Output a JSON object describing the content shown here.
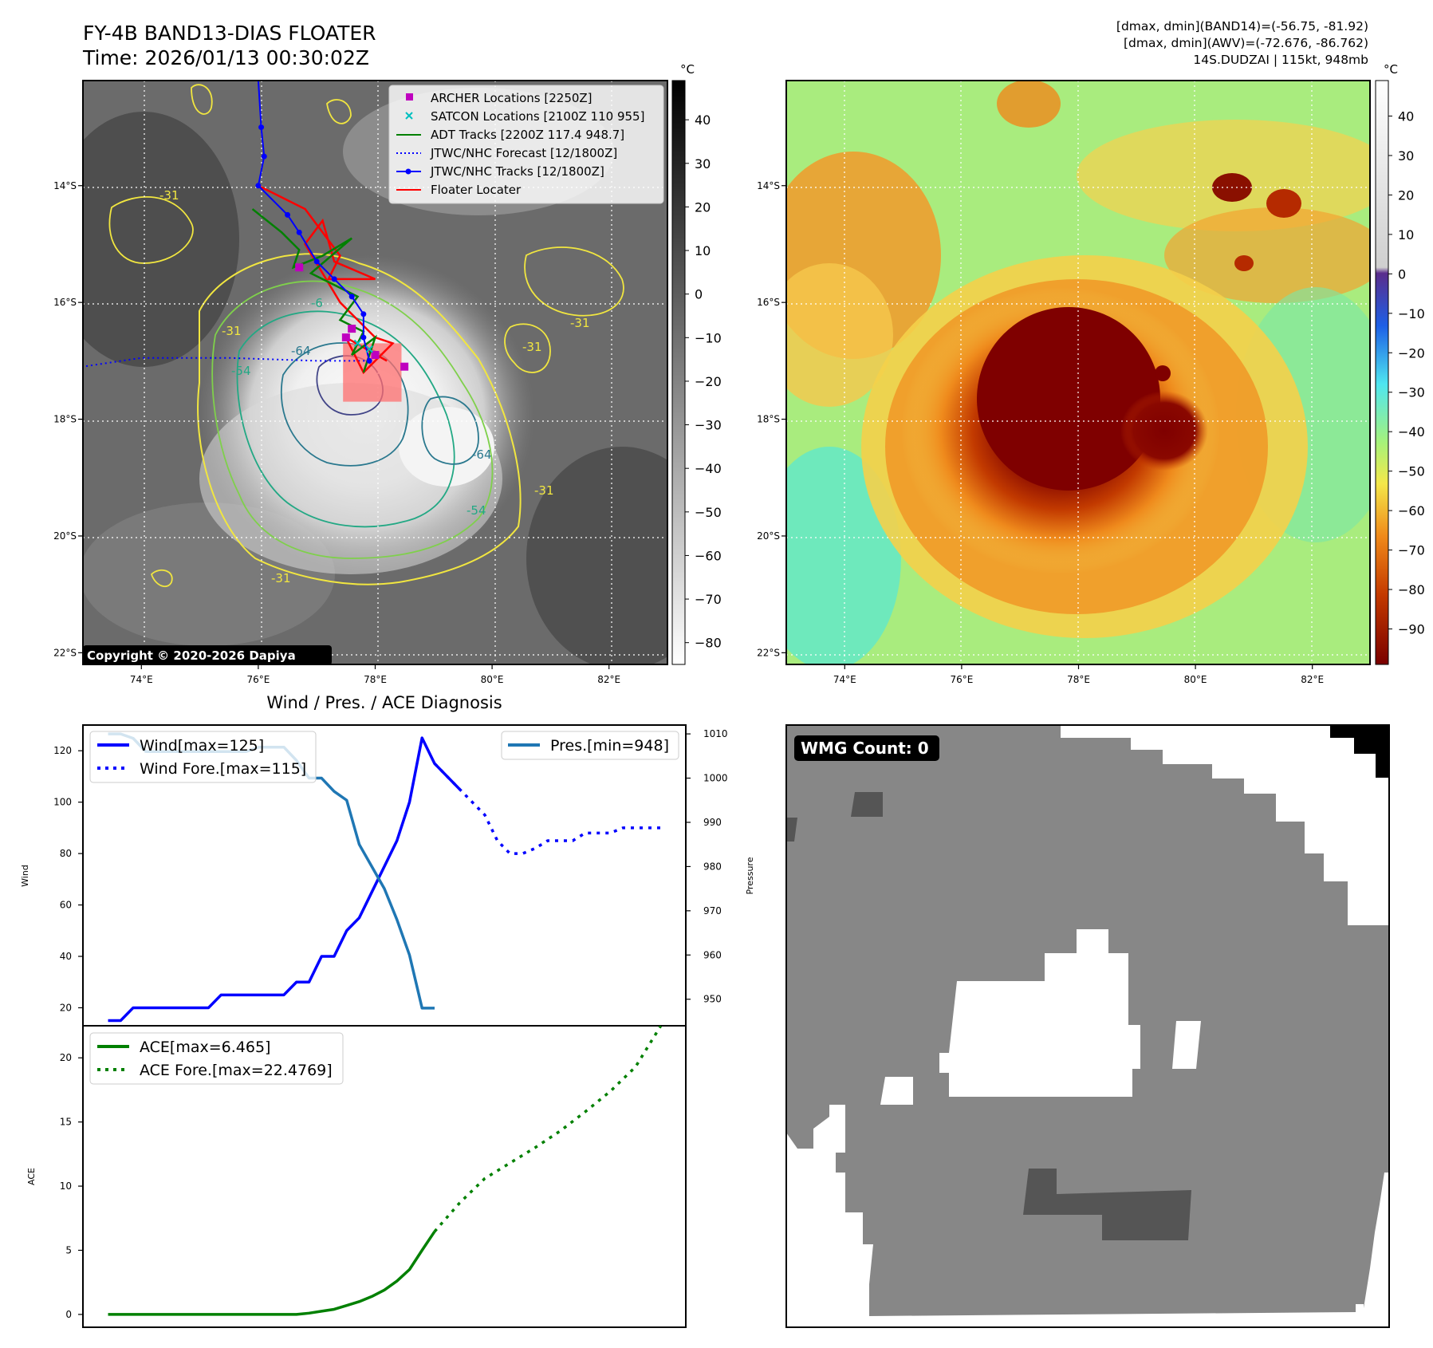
{
  "header": {
    "title_line1": "FY-4B BAND13-DIAS FLOATER",
    "title_line2": "Time: 2026/01/13 00:30:02Z",
    "info_line1": "[dmax, dmin](BAND14)=(-56.75, -81.92)",
    "info_line2": "[dmax, dmin](AWV)=(-72.676, -86.762)",
    "info_line3": "14S.DUDZAI | 115kt, 948mb"
  },
  "map_axes": {
    "lon_ticks": [
      "74°E",
      "76°E",
      "78°E",
      "80°E",
      "82°E"
    ],
    "lat_ticks": [
      "14°S",
      "16°S",
      "18°S",
      "20°S",
      "22°S"
    ],
    "lon_range": [
      73,
      83
    ],
    "lat_range": [
      -12.2,
      -22.2
    ]
  },
  "ir_panel": {
    "copyright": "Copyright © 2020-2026 Dapiya",
    "colorbar_unit": "°C",
    "colorbar_ticks": [
      "40",
      "30",
      "20",
      "10",
      "0",
      "−10",
      "−20",
      "−30",
      "−40",
      "−50",
      "−60",
      "−70",
      "−80"
    ],
    "colorbar_range": [
      49,
      -85
    ],
    "legend": [
      {
        "label": "ARCHER Locations [2250Z]",
        "color": "#bf00bf",
        "marker": "square"
      },
      {
        "label": "SATCON Locations [2100Z 110 955]",
        "color": "#00bfbf",
        "marker": "x"
      },
      {
        "label": "ADT Tracks [2200Z 117.4 948.7]",
        "color": "#008000",
        "marker": "line"
      },
      {
        "label": "JTWC/NHC Forecast [12/1800Z]",
        "color": "#0000ff",
        "marker": "dotted"
      },
      {
        "label": "JTWC/NHC Tracks [12/1800Z]",
        "color": "#0000ff",
        "marker": "line-dot"
      },
      {
        "label": "Floater Locater",
        "color": "#ff0000",
        "marker": "line"
      }
    ],
    "contour_labels": [
      "-31",
      "-31",
      "-31",
      "-31",
      "-31",
      "-54",
      "-54",
      "-64",
      "-64",
      "-6",
      "-31"
    ],
    "jtwc_track": [
      [
        76.0,
        -12.2
      ],
      [
        76.05,
        -13.0
      ],
      [
        76.1,
        -13.5
      ],
      [
        76.0,
        -14.0
      ],
      [
        76.5,
        -14.5
      ],
      [
        76.7,
        -14.8
      ],
      [
        77.0,
        -15.3
      ],
      [
        77.3,
        -15.6
      ],
      [
        77.6,
        -15.9
      ],
      [
        77.8,
        -16.2
      ],
      [
        77.8,
        -16.6
      ],
      [
        77.9,
        -17.0
      ]
    ],
    "jtwc_forecast": [
      [
        77.9,
        -17.0
      ],
      [
        77.0,
        -17.0
      ],
      [
        75.5,
        -16.95
      ],
      [
        74.0,
        -16.95
      ],
      [
        73.0,
        -17.1
      ]
    ],
    "archer_points": [
      [
        77.6,
        -16.45
      ],
      [
        77.5,
        -16.6
      ],
      [
        78.0,
        -16.9
      ],
      [
        78.5,
        -17.1
      ],
      [
        76.7,
        -15.4
      ]
    ],
    "floater_box": {
      "lon": [
        77.45,
        78.45
      ],
      "lat": [
        -16.7,
        -17.7
      ]
    }
  },
  "wv_panel": {
    "colorbar_unit": "°C",
    "colorbar_ticks": [
      "40",
      "30",
      "20",
      "10",
      "0",
      "−10",
      "−20",
      "−30",
      "−40",
      "−50",
      "−60",
      "−70",
      "−80",
      "−90"
    ],
    "colorbar_range": [
      49,
      -99
    ]
  },
  "wmg_panel": {
    "label": "WMG Count: 0"
  },
  "chart_data": [
    {
      "type": "line",
      "title": "Wind / Pres. / ACE Diagnosis",
      "ylabel": "Wind",
      "ylabel_right": "Pressure",
      "ylim": [
        13,
        130
      ],
      "ylim_right": [
        944,
        1012
      ],
      "yticks": [
        20,
        40,
        60,
        80,
        100,
        120
      ],
      "yticks_right": [
        950,
        960,
        970,
        980,
        990,
        1000,
        1010
      ],
      "xlim": [
        -2,
        46
      ],
      "series": [
        {
          "name": "Wind[max=125]",
          "style": "solid",
          "color": "#0000ff",
          "axis": "left",
          "x": [
            0,
            1,
            2,
            3,
            4,
            5,
            6,
            7,
            8,
            9,
            10,
            11,
            12,
            13,
            14,
            15,
            16,
            17,
            18,
            19,
            20,
            21,
            22,
            23,
            24,
            25,
            26,
            27,
            28
          ],
          "values": [
            15,
            15,
            20,
            20,
            20,
            20,
            20,
            20,
            20,
            25,
            25,
            25,
            25,
            25,
            25,
            30,
            30,
            40,
            40,
            50,
            55,
            65,
            75,
            85,
            100,
            125,
            115,
            110,
            105
          ]
        },
        {
          "name": "Wind Fore.[max=115]",
          "style": "dotted",
          "color": "#0000ff",
          "axis": "left",
          "x": [
            26,
            27,
            28,
            29,
            30,
            31,
            32,
            33,
            34,
            35,
            36,
            37,
            38,
            39,
            40,
            41,
            42,
            43,
            44
          ],
          "values": [
            115,
            110,
            105,
            100,
            95,
            85,
            80,
            80,
            82,
            85,
            85,
            85,
            88,
            88,
            88,
            90,
            90,
            90,
            90
          ]
        },
        {
          "name": "Pres.[min=948]",
          "style": "solid",
          "color": "#1f77b4",
          "axis": "right",
          "x": [
            0,
            1,
            2,
            3,
            4,
            5,
            6,
            7,
            8,
            9,
            10,
            11,
            12,
            13,
            14,
            15,
            16,
            17,
            18,
            19,
            20,
            21,
            22,
            23,
            24,
            25,
            26
          ],
          "values": [
            1010,
            1010,
            1009,
            1006,
            1006,
            1006,
            1006,
            1006,
            1006,
            1006,
            1006,
            1006,
            1007,
            1007,
            1007,
            1004,
            1000,
            1000,
            997,
            995,
            985,
            980,
            975,
            968,
            960,
            948,
            948
          ]
        }
      ]
    },
    {
      "type": "line",
      "ylabel": "ACE",
      "ylim": [
        -1,
        22.5
      ],
      "yticks": [
        0,
        5,
        10,
        15,
        20
      ],
      "xlim": [
        -2,
        46
      ],
      "series": [
        {
          "name": "ACE[max=6.465]",
          "style": "solid",
          "color": "#008000",
          "x": [
            0,
            2,
            4,
            6,
            8,
            10,
            12,
            14,
            15,
            16,
            17,
            18,
            19,
            20,
            21,
            22,
            23,
            24,
            25,
            26
          ],
          "values": [
            0,
            0,
            0,
            0,
            0,
            0,
            0,
            0,
            0,
            0.1,
            0.25,
            0.4,
            0.7,
            1.0,
            1.4,
            1.9,
            2.6,
            3.5,
            5.0,
            6.465
          ]
        },
        {
          "name": "ACE Fore.[max=22.4769]",
          "style": "dotted",
          "color": "#008000",
          "x": [
            26,
            28,
            30,
            32,
            34,
            36,
            38,
            40,
            42,
            44
          ],
          "values": [
            6.465,
            8.7,
            10.6,
            11.8,
            13.0,
            14.3,
            15.8,
            17.4,
            19.3,
            22.48
          ]
        }
      ]
    }
  ]
}
